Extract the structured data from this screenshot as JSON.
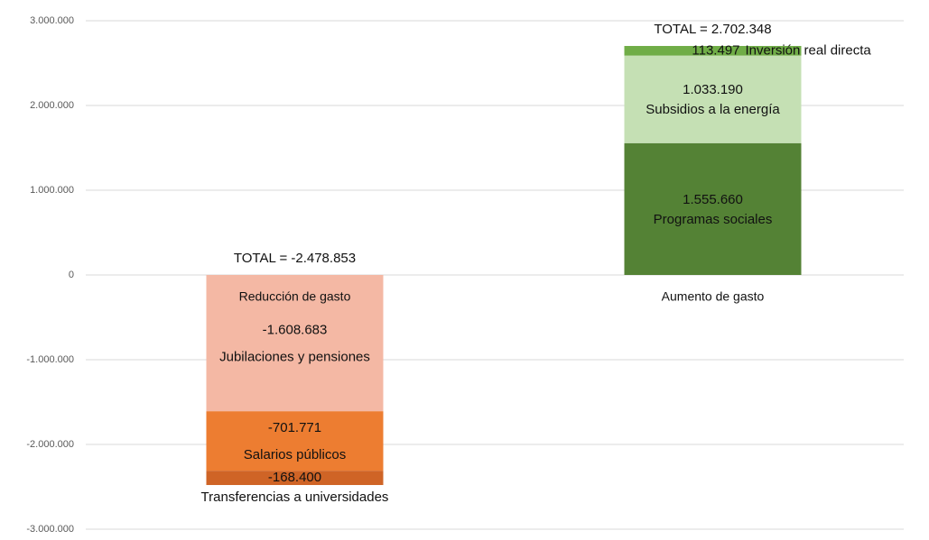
{
  "chart_data": {
    "type": "stacked_bar",
    "categories": [
      "Reducción de gasto",
      "Aumento de gasto"
    ],
    "series": [
      {
        "name": "Jubilaciones y pensiones",
        "color": "#f4b8a4",
        "values": [
          -1608683,
          null
        ],
        "value_labels": [
          "-1.608.683",
          null
        ]
      },
      {
        "name": "Salarios públicos",
        "color": "#ed7d31",
        "values": [
          -701771,
          null
        ],
        "value_labels": [
          "-701.771",
          null
        ]
      },
      {
        "name": "Transferencias a universidades",
        "color": "#cf6426",
        "values": [
          -168400,
          null
        ],
        "value_labels": [
          "-168.400",
          null
        ]
      },
      {
        "name": "Programas sociales",
        "color": "#548235",
        "values": [
          null,
          1555660
        ],
        "value_labels": [
          null,
          "1.555.660"
        ]
      },
      {
        "name": "Subsidios a la energía",
        "color": "#c5e0b4",
        "values": [
          null,
          1033190
        ],
        "value_labels": [
          null,
          "1.033.190"
        ]
      },
      {
        "name": "Inversión real directa",
        "color": "#70ad47",
        "values": [
          null,
          113497
        ],
        "value_labels": [
          null,
          "113.497"
        ]
      }
    ],
    "annotations": [
      "TOTAL = -2.478.853",
      "TOTAL = 2.702.348"
    ],
    "ylim": [
      -3000000,
      3000000
    ],
    "yticks": [
      {
        "value": -3000000,
        "label": "-3.000.000"
      },
      {
        "value": -2000000,
        "label": "-2.000.000"
      },
      {
        "value": -1000000,
        "label": "-1.000.000"
      },
      0,
      {
        "value": 1000000,
        "label": "1.000.000"
      },
      {
        "value": 2000000,
        "label": "2.000.000"
      },
      {
        "value": 3000000,
        "label": "3.000.000"
      }
    ],
    "grid": true
  }
}
